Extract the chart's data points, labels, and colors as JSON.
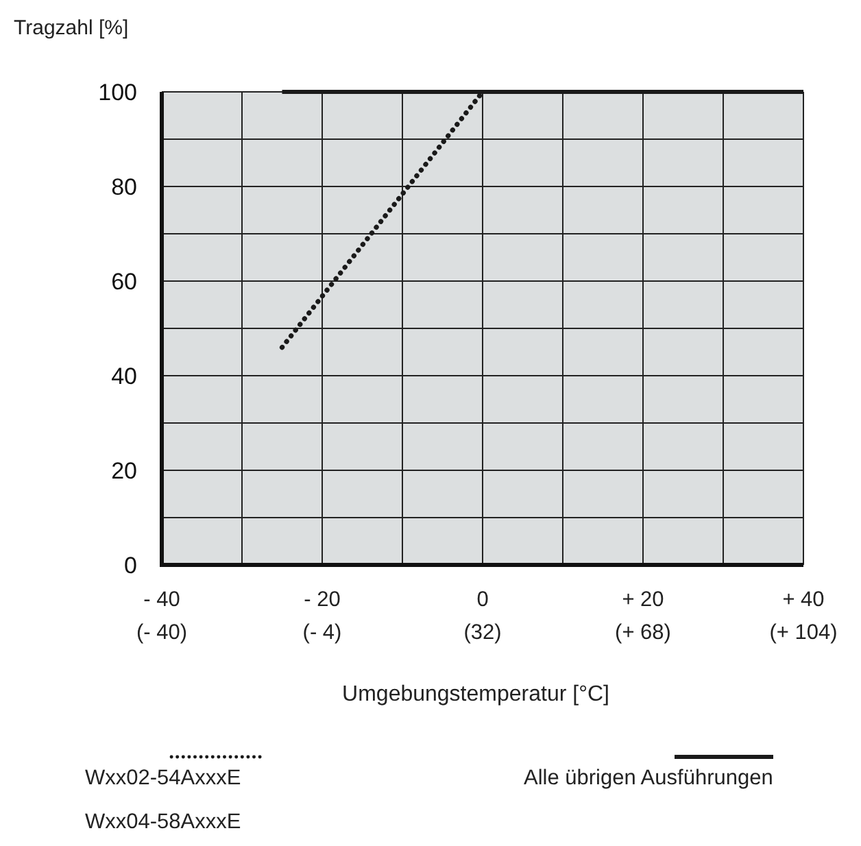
{
  "chart_data": {
    "type": "line",
    "ylabel": "Tragzahl [%]",
    "xlabel": "Umgebungstemperatur [°C]",
    "xlim": [
      -40,
      40
    ],
    "xticks": [
      {
        "value": -40,
        "label": "- 40"
      },
      {
        "value": -30,
        "label": null
      },
      {
        "value": -20,
        "label": "- 20"
      },
      {
        "value": -10,
        "label": null
      },
      0,
      {
        "value": 10,
        "label": null
      },
      {
        "value": 20,
        "label": "+ 20"
      },
      {
        "value": 30,
        "label": null
      },
      {
        "value": 40,
        "label": "+ 40"
      }
    ],
    "x2lim": [
      -40,
      104
    ],
    "x2ticks": [
      {
        "value": -40,
        "label": "(- 40)"
      },
      {
        "value": -4,
        "label": "(- 4)"
      },
      {
        "value": 32,
        "label": "(32)"
      },
      {
        "value": 68,
        "label": "(+ 68)"
      },
      {
        "value": 104,
        "label": "(+ 104)"
      }
    ],
    "ylim": [
      0,
      100
    ],
    "yticks": [
      0,
      {
        "value": 10,
        "label": null
      },
      20,
      {
        "value": 30,
        "label": null
      },
      40,
      {
        "value": 50,
        "label": null
      },
      60,
      {
        "value": 70,
        "label": null
      },
      80,
      {
        "value": 90,
        "label": null
      },
      100
    ],
    "grid": true,
    "legend": "bottom",
    "marker": "none",
    "series": [
      {
        "name": "Wxx02-54AxxxE\nWxx04-58AxxxE",
        "color": "#1a1a1a",
        "line_style": "dotted",
        "x": [
          -25,
          0
        ],
        "values": [
          46,
          100
        ]
      },
      {
        "name": "Alle übrigen Ausführungen",
        "color": "#1a1a1a",
        "line_style": "solid",
        "x": [
          -25,
          40
        ],
        "values": [
          100,
          100
        ]
      }
    ]
  }
}
